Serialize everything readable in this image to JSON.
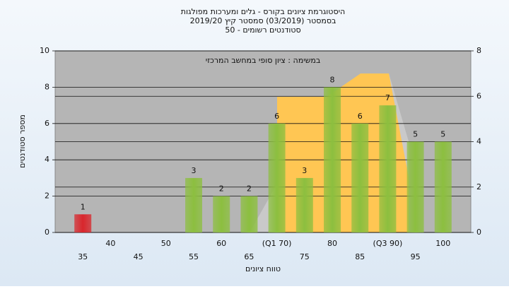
{
  "chart_data": {
    "type": "bar",
    "title": [
      "היסטוגרמת ציונים בקורס - גלים ומערכות מפולגות",
      "בסמסטר (03/2019)  סמסטר קיץ 2019/20",
      "סטודנטים רשומים - 50"
    ],
    "annotation": "במשימה : ציון סופי במחשב המרכזי",
    "y_label": "מספר סטודנטים",
    "x_label": "טווח ציונים",
    "categories": [
      "35",
      "40",
      "45",
      "50",
      "55",
      "60",
      "65",
      "(Q1 70)",
      "75",
      "80",
      "85",
      "(Q3 90)",
      "95",
      "100"
    ],
    "values": [
      1,
      null,
      null,
      null,
      3,
      2,
      2,
      6,
      3,
      8,
      6,
      7,
      5,
      5
    ],
    "colors": [
      "#d9262c",
      null,
      null,
      null,
      "#8cbf3f",
      "#8cbf3f",
      "#8cbf3f",
      "#8cbf3f",
      "#8cbf3f",
      "#8cbf3f",
      "#8cbf3f",
      "#8cbf3f",
      "#8cbf3f",
      "#8cbf3f"
    ],
    "ylim": [
      0,
      10
    ],
    "yticks": [
      0,
      2,
      4,
      6,
      8,
      10
    ],
    "y2lim": [
      0,
      8
    ],
    "y2ticks": [
      0,
      2,
      4,
      6,
      8
    ],
    "grid": true
  }
}
